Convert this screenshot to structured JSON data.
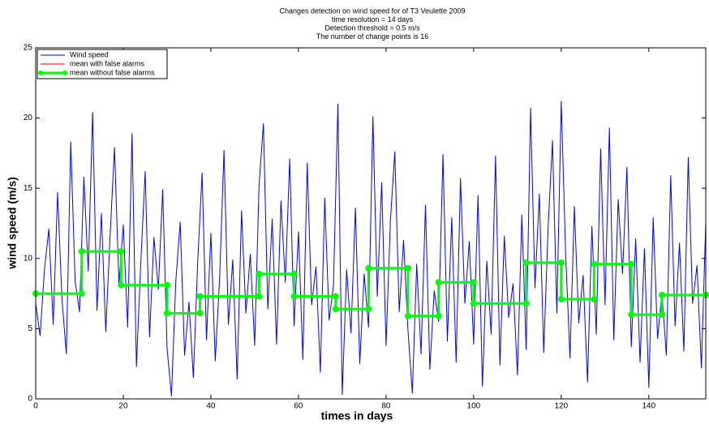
{
  "chart_data": {
    "type": "line",
    "title": [
      "Changes detection on wind speed for of T3 Veulette 2009",
      "time resolution = 14 days",
      "Detection threshold = 0.5 m/s",
      "The number of  change points is 16"
    ],
    "xlabel": "times in days",
    "ylabel": "wind speed (m/s)",
    "xlim": [
      0,
      153
    ],
    "ylim": [
      0,
      25
    ],
    "xticks": [
      0,
      20,
      40,
      60,
      80,
      100,
      120,
      140
    ],
    "yticks": [
      0,
      5,
      10,
      15,
      20,
      25
    ],
    "legend": "upper left",
    "series": [
      {
        "name": "Wind speed",
        "color": "#0000ff",
        "x": [
          0,
          1,
          2,
          3,
          4,
          5,
          6,
          7,
          8,
          9,
          10,
          11,
          12,
          13,
          14,
          15,
          16,
          17,
          18,
          19,
          20,
          21,
          22,
          23,
          24,
          25,
          26,
          27,
          28,
          29,
          30,
          31,
          32,
          33,
          34,
          35,
          36,
          37,
          38,
          39,
          40,
          41,
          42,
          43,
          44,
          45,
          46,
          47,
          48,
          49,
          50,
          51,
          52,
          53,
          54,
          55,
          56,
          57,
          58,
          59,
          60,
          61,
          62,
          63,
          64,
          65,
          66,
          67,
          68,
          69,
          70,
          71,
          72,
          73,
          74,
          75,
          76,
          77,
          78,
          79,
          80,
          81,
          82,
          83,
          84,
          85,
          86,
          87,
          88,
          89,
          90,
          91,
          92,
          93,
          94,
          95,
          96,
          97,
          98,
          99,
          100,
          101,
          102,
          103,
          104,
          105,
          106,
          107,
          108,
          109,
          110,
          111,
          112,
          113,
          114,
          115,
          116,
          117,
          118,
          119,
          120,
          121,
          122,
          123,
          124,
          125,
          126,
          127,
          128,
          129,
          130,
          131,
          132,
          133,
          134,
          135,
          136,
          137,
          138,
          139,
          140,
          141,
          142,
          143,
          144,
          145,
          146,
          147,
          148,
          149,
          150,
          151,
          152,
          153
        ],
        "values": [
          6.8,
          4.5,
          9.2,
          12.1,
          5.3,
          14.7,
          7.1,
          3.2,
          18.3,
          8.4,
          6.2,
          15.8,
          9.1,
          20.4,
          6.3,
          13.2,
          4.8,
          11.7,
          17.9,
          8.2,
          12.4,
          5.1,
          18.9,
          2.3,
          9.7,
          16.2,
          4.4,
          11.5,
          7.8,
          14.9,
          3.6,
          0.2,
          8.4,
          12.6,
          3.1,
          6.9,
          1.5,
          9.8,
          16.1,
          4.2,
          11.8,
          2.7,
          8.6,
          17.7,
          5.3,
          9.9,
          1.4,
          13.4,
          6.1,
          10.3,
          3.8,
          15.2,
          19.6,
          6.4,
          12.8,
          3.9,
          14.1,
          8.3,
          17.1,
          5.2,
          11.9,
          2.8,
          16.8,
          6.7,
          9.4,
          1.9,
          14.3,
          5.6,
          8.1,
          21.0,
          0.3,
          9.2,
          4.7,
          13.6,
          2.5,
          8.9,
          5.1,
          20.1,
          7.3,
          15.4,
          3.8,
          12.7,
          17.6,
          6.2,
          11.3,
          4.9,
          0.4,
          9.6,
          3.2,
          13.8,
          2.1,
          7.7,
          5.5,
          17.4,
          4.1,
          12.9,
          2.6,
          15.7,
          6.8,
          11.2,
          3.9,
          14.5,
          0.9,
          9.8,
          4.6,
          17.3,
          2.4,
          11.6,
          5.8,
          8.2,
          1.7,
          13.1,
          3.5,
          20.7,
          7.9,
          14.6,
          3.3,
          12.2,
          18.4,
          6.1,
          21.2,
          10.4,
          2.9,
          13.7,
          5.4,
          8.8,
          1.2,
          12.3,
          4.6,
          17.8,
          6.7,
          19.3,
          4.2,
          14.2,
          8.9,
          16.5,
          3.7,
          11.4,
          2.6,
          10.7,
          0.8,
          12.9,
          4.3,
          7.6,
          3.1,
          15.9,
          5.2,
          11.1,
          3.4,
          17.2,
          6.8,
          9.5,
          2.2,
          12.6
        ]
      },
      {
        "name": "mean with false alarms",
        "color": "#ff0000",
        "x": [
          0,
          10.5,
          10.5,
          19.5,
          19.5,
          30,
          30,
          37.5,
          37.5,
          51,
          51,
          59,
          59,
          68.5,
          68.5,
          76,
          76,
          85,
          85,
          92,
          92,
          100,
          100,
          112,
          112,
          120,
          120,
          127.5,
          127.5,
          136,
          136,
          143,
          143,
          153
        ],
        "values": [
          7.5,
          7.5,
          10.5,
          10.5,
          8.1,
          8.1,
          6.1,
          6.1,
          7.3,
          7.3,
          8.9,
          8.9,
          7.3,
          7.3,
          6.4,
          6.4,
          9.3,
          9.3,
          5.9,
          5.9,
          8.3,
          8.3,
          6.8,
          6.8,
          9.7,
          9.7,
          7.1,
          7.1,
          9.6,
          9.6,
          6.0,
          6.0,
          7.4,
          7.4
        ]
      },
      {
        "name": "mean without false alarms",
        "color": "#00ff00",
        "markers": true,
        "x": [
          0,
          10.5,
          10.5,
          19.5,
          19.5,
          30,
          30,
          37.5,
          37.5,
          51,
          51,
          59,
          59,
          68.5,
          68.5,
          76,
          76,
          85,
          85,
          92,
          92,
          100,
          100,
          112,
          112,
          120,
          120,
          127.5,
          127.5,
          136,
          136,
          143,
          143,
          153
        ],
        "values": [
          7.5,
          7.5,
          10.5,
          10.5,
          8.1,
          8.1,
          6.1,
          6.1,
          7.3,
          7.3,
          8.9,
          8.9,
          7.3,
          7.3,
          6.4,
          6.4,
          9.3,
          9.3,
          5.9,
          5.9,
          8.3,
          8.3,
          6.8,
          6.8,
          9.7,
          9.7,
          7.1,
          7.1,
          9.6,
          9.6,
          6.0,
          6.0,
          7.4,
          7.4
        ]
      }
    ]
  }
}
